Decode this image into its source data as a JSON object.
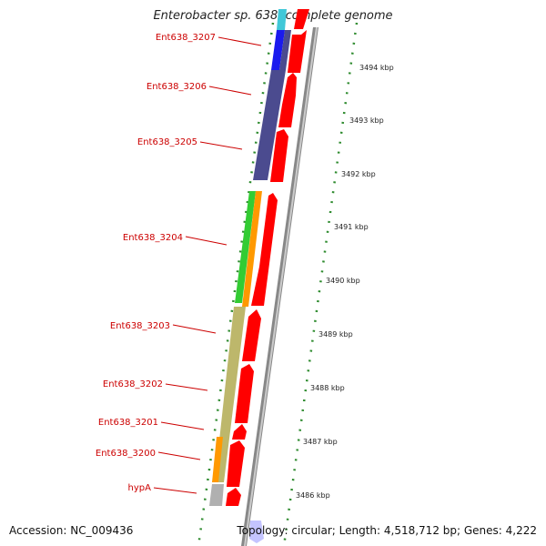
{
  "title": "Enterobacter sp. 638, complete genome",
  "footer": {
    "accession": "Accession: NC_009436",
    "topology": "Topology: circular; Length: 4,518,712 bp; Genes: 4,222"
  },
  "colors": {
    "forward_gene": "#ff0000",
    "backbone": "#808080",
    "tick": "#2e8b2e",
    "label": "#cc0000",
    "blue": "#1a1aee",
    "slate": "#4b4b8f",
    "green": "#33cc33",
    "orange": "#ff9900",
    "khaki": "#bdb76b",
    "grey": "#b0b0b0",
    "cyan": "#40c8d8"
  },
  "gene_labels": [
    {
      "name": "Ent638_3207"
    },
    {
      "name": "Ent638_3206"
    },
    {
      "name": "Ent638_3205"
    },
    {
      "name": "Ent638_3204"
    },
    {
      "name": "Ent638_3203"
    },
    {
      "name": "Ent638_3202"
    },
    {
      "name": "Ent638_3201"
    },
    {
      "name": "Ent638_3200"
    },
    {
      "name": "hypA"
    }
  ],
  "kbp_ticks": [
    "3494 kbp",
    "3493 kbp",
    "3492 kbp",
    "3491 kbp",
    "3490 kbp",
    "3489 kbp",
    "3488 kbp",
    "3487 kbp",
    "3486 kbp"
  ]
}
